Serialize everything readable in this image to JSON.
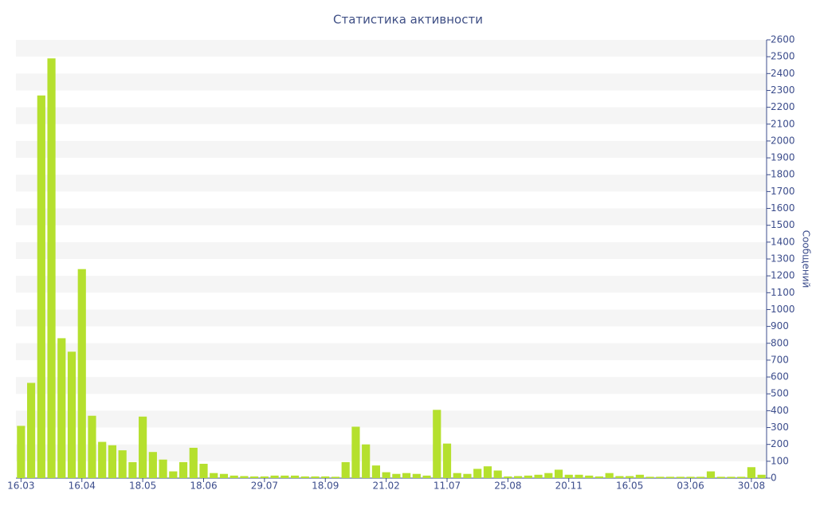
{
  "chart_data": {
    "type": "bar",
    "title": "Статистика активности",
    "y_label": "Сообщений",
    "y_axis_side": "right",
    "color": "#b5e02e",
    "grid": true,
    "categories": [
      "16.03",
      null,
      null,
      null,
      null,
      null,
      "16.04",
      null,
      null,
      null,
      null,
      null,
      "18.05",
      null,
      null,
      null,
      null,
      null,
      "18.06",
      null,
      null,
      null,
      null,
      null,
      "29.07",
      null,
      null,
      null,
      null,
      null,
      "18.09",
      null,
      null,
      null,
      null,
      null,
      "21.02",
      null,
      null,
      null,
      null,
      null,
      "11.07",
      null,
      null,
      null,
      null,
      null,
      "25.08",
      null,
      null,
      null,
      null,
      null,
      "20.11",
      null,
      null,
      null,
      null,
      null,
      "16.05",
      null,
      null,
      null,
      null,
      null,
      "03.06",
      null,
      null,
      null,
      null,
      null,
      "30.08",
      null
    ],
    "values": [
      310,
      565,
      2270,
      2490,
      830,
      750,
      1240,
      370,
      215,
      195,
      165,
      95,
      365,
      155,
      110,
      40,
      95,
      180,
      85,
      30,
      25,
      15,
      12,
      10,
      10,
      15,
      15,
      15,
      10,
      10,
      10,
      8,
      95,
      305,
      200,
      75,
      35,
      25,
      30,
      25,
      15,
      405,
      205,
      30,
      25,
      55,
      70,
      45,
      10,
      12,
      15,
      20,
      30,
      50,
      20,
      20,
      15,
      10,
      30,
      12,
      12,
      20,
      8,
      8,
      8,
      8,
      8,
      8,
      40,
      8,
      8,
      8,
      65,
      20
    ],
    "ylim": [
      0,
      2600
    ],
    "yticks": [
      0,
      100,
      200,
      300,
      400,
      500,
      600,
      700,
      800,
      900,
      1000,
      1100,
      1200,
      1300,
      1400,
      1500,
      1600,
      1700,
      1800,
      1900,
      2000,
      2100,
      2200,
      2300,
      2400,
      2500,
      2600
    ]
  }
}
